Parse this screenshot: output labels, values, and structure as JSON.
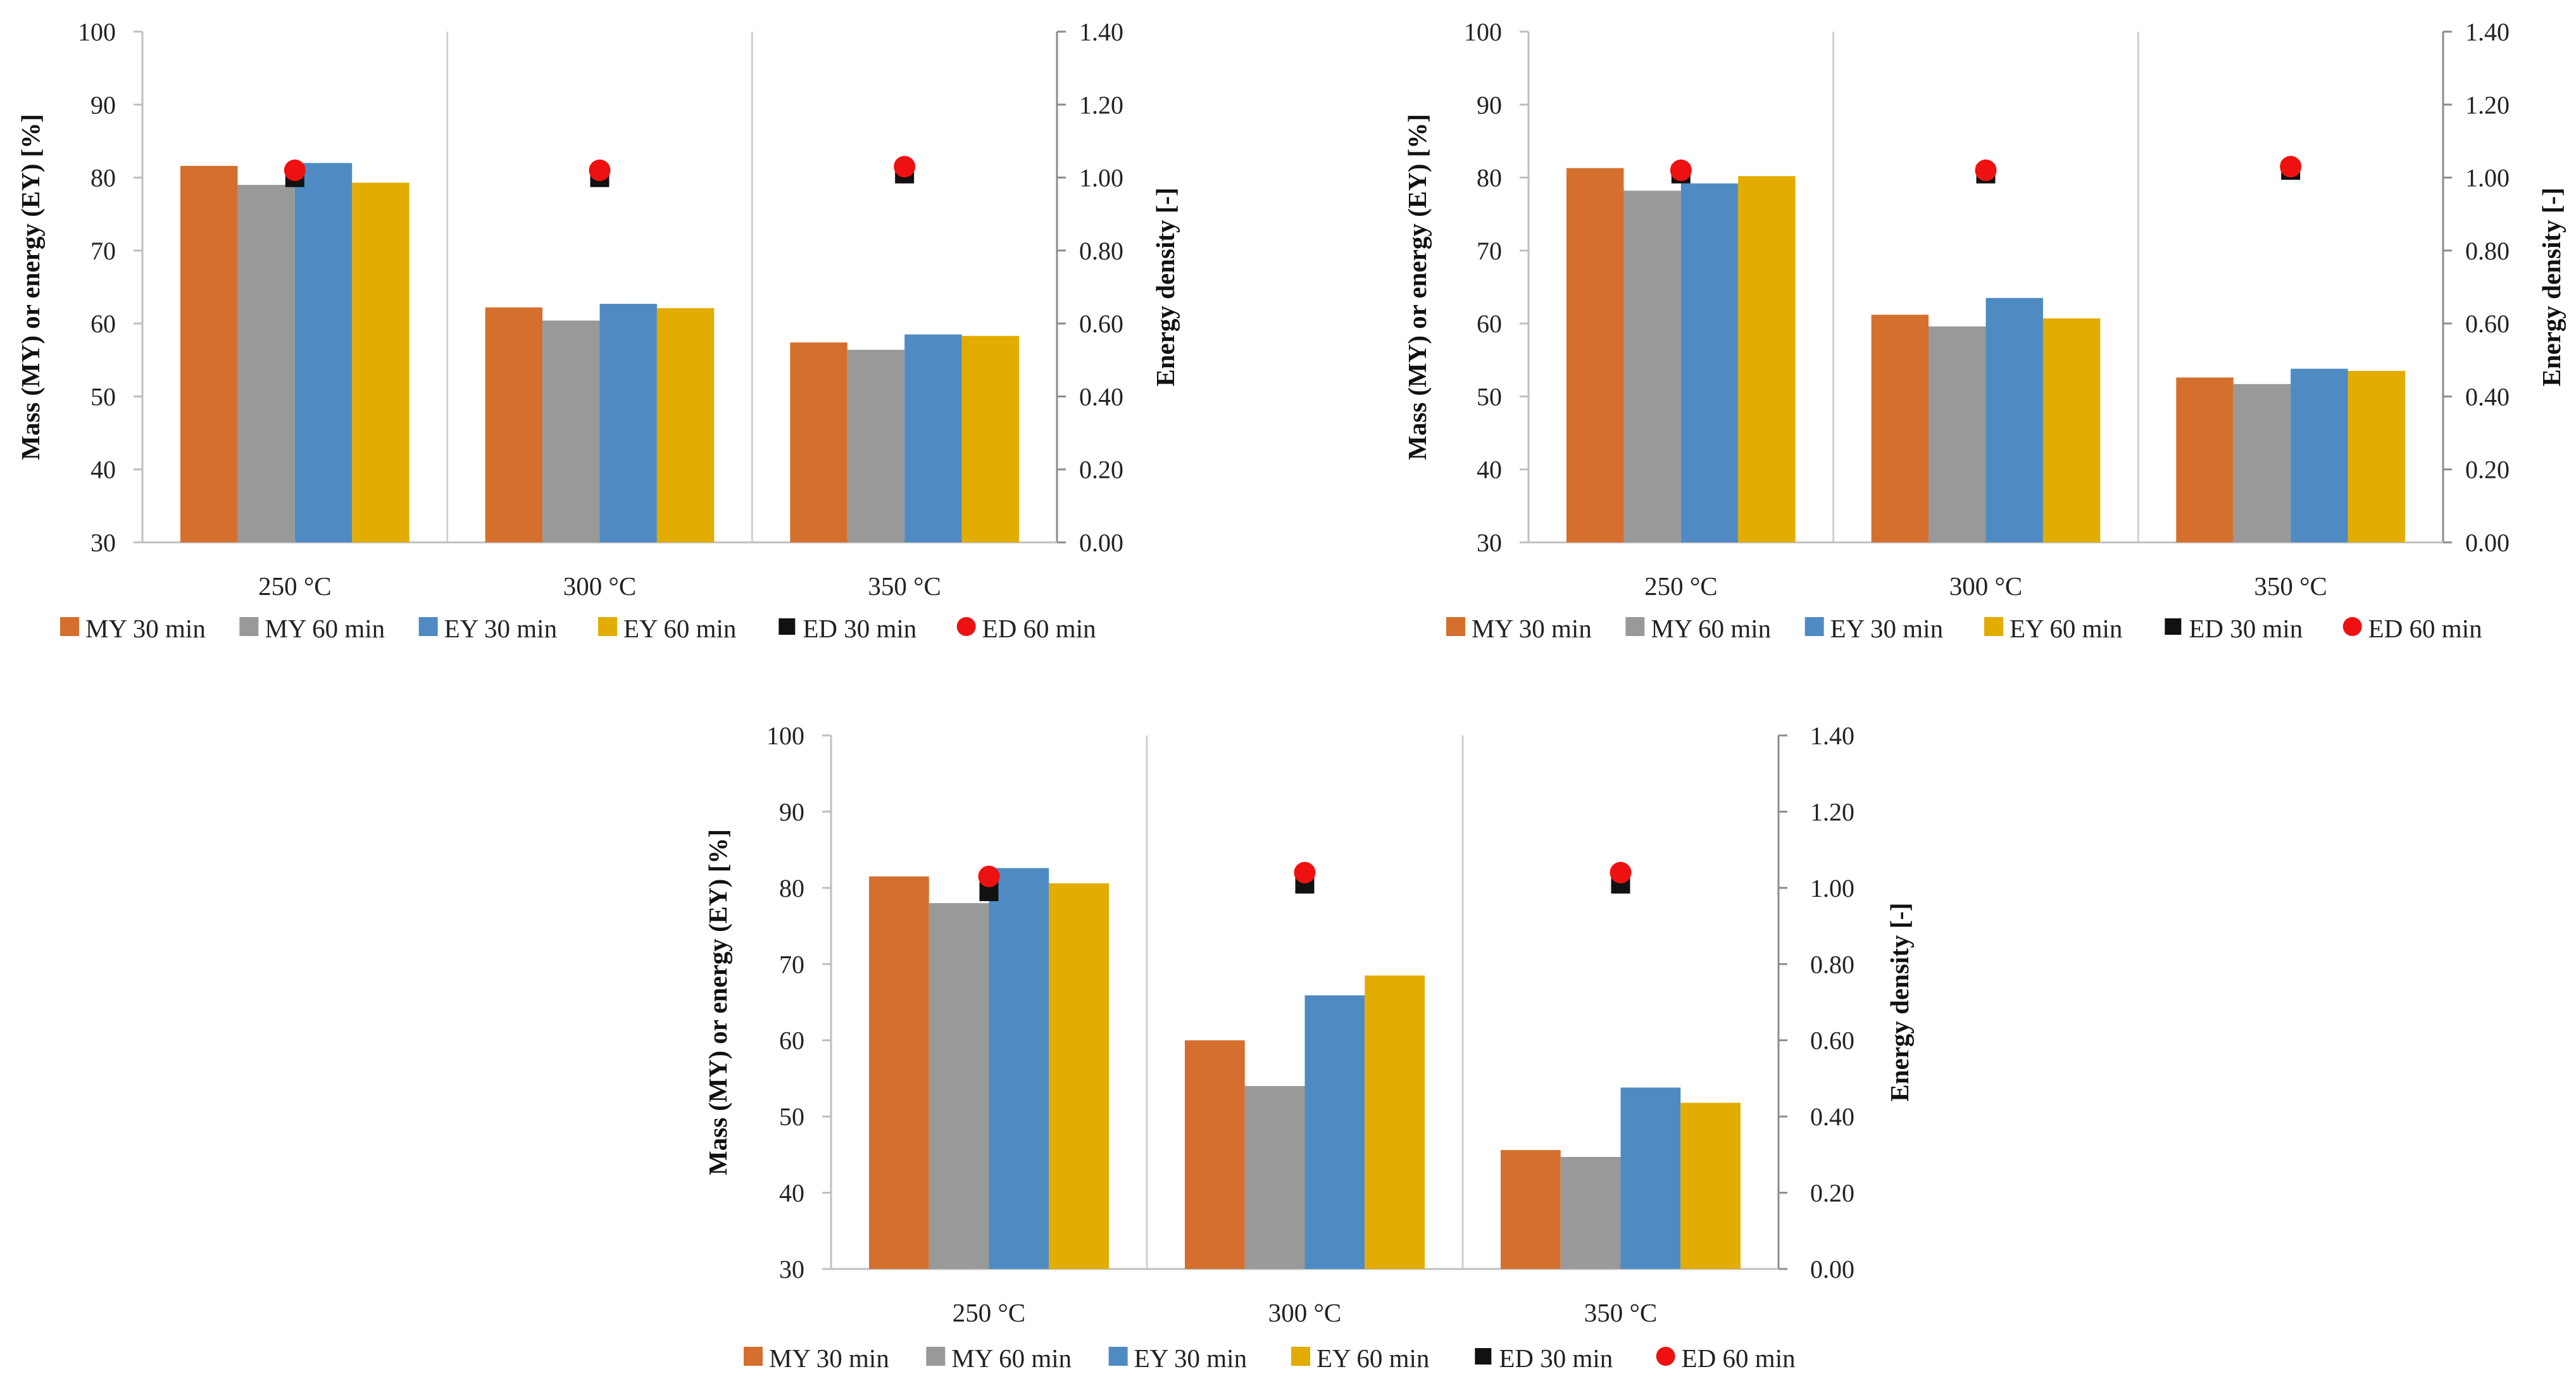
{
  "chart_data": [
    {
      "type": "bar",
      "categories": [
        "250 °C",
        "300 °C",
        "350 °C"
      ],
      "series": [
        {
          "name": "MY 30 min",
          "color": "#D46F2D",
          "values": [
            81.6,
            62.2,
            57.4
          ]
        },
        {
          "name": "MY 60 min",
          "color": "#999999",
          "values": [
            79.0,
            60.4,
            56.4
          ]
        },
        {
          "name": "EY 30 min",
          "color": "#4F8BC2",
          "values": [
            82.0,
            62.7,
            58.5
          ]
        },
        {
          "name": "EY 60 min",
          "color": "#E2AC00",
          "values": [
            79.3,
            62.1,
            58.3
          ]
        }
      ],
      "secondary_series": [
        {
          "name": "ED 30 min",
          "color": "#111111",
          "marker": "square",
          "values": [
            1.0,
            1.0,
            1.01
          ]
        },
        {
          "name": "ED 60 min",
          "color": "#EE1111",
          "marker": "circle",
          "values": [
            1.02,
            1.02,
            1.03
          ]
        }
      ],
      "ylabel": "Mass (MY) or energy (EY) [%]",
      "y2label": "Energy density [-]",
      "ylim": [
        30,
        100
      ],
      "yticks": [
        "30",
        "40",
        "50",
        "60",
        "70",
        "80",
        "90",
        "100"
      ],
      "y2lim": [
        0,
        1.4
      ],
      "y2ticks": [
        "0.00",
        "0.20",
        "0.40",
        "0.60",
        "0.80",
        "1.00",
        "1.20",
        "1.40"
      ]
    },
    {
      "type": "bar",
      "categories": [
        "250 °C",
        "300 °C",
        "350 °C"
      ],
      "series": [
        {
          "name": "MY 30 min",
          "color": "#D46F2D",
          "values": [
            81.3,
            61.2,
            52.6
          ]
        },
        {
          "name": "MY 60 min",
          "color": "#999999",
          "values": [
            78.2,
            59.6,
            51.7
          ]
        },
        {
          "name": "EY 30 min",
          "color": "#4F8BC2",
          "values": [
            79.2,
            63.5,
            53.8
          ]
        },
        {
          "name": "EY 60 min",
          "color": "#E2AC00",
          "values": [
            80.2,
            60.7,
            53.5
          ]
        }
      ],
      "secondary_series": [
        {
          "name": "ED 30 min",
          "color": "#111111",
          "marker": "square",
          "values": [
            1.01,
            1.01,
            1.02
          ]
        },
        {
          "name": "ED 60 min",
          "color": "#EE1111",
          "marker": "circle",
          "values": [
            1.02,
            1.02,
            1.03
          ]
        }
      ],
      "ylabel": "Mass (MY) or energy (EY) [%]",
      "y2label": "Energy density [-]",
      "ylim": [
        30,
        100
      ],
      "yticks": [
        "30",
        "40",
        "50",
        "60",
        "70",
        "80",
        "90",
        "100"
      ],
      "y2lim": [
        0,
        1.4
      ],
      "y2ticks": [
        "0.00",
        "0.20",
        "0.40",
        "0.60",
        "0.80",
        "1.00",
        "1.20",
        "1.40"
      ]
    },
    {
      "type": "bar",
      "categories": [
        "250 °C",
        "300 °C",
        "350 °C"
      ],
      "series": [
        {
          "name": "MY 30 min",
          "color": "#D46F2D",
          "values": [
            81.5,
            60.0,
            45.6
          ]
        },
        {
          "name": "MY 60 min",
          "color": "#999999",
          "values": [
            78.0,
            54.0,
            44.7
          ]
        },
        {
          "name": "EY 30 min",
          "color": "#4F8BC2",
          "values": [
            82.6,
            65.9,
            53.8
          ]
        },
        {
          "name": "EY 60 min",
          "color": "#E2AC00",
          "values": [
            80.6,
            68.5,
            51.8
          ]
        }
      ],
      "secondary_series": [
        {
          "name": "ED 30 min",
          "color": "#111111",
          "marker": "square",
          "values": [
            0.99,
            1.01,
            1.01
          ]
        },
        {
          "name": "ED 60 min",
          "color": "#EE1111",
          "marker": "circle",
          "values": [
            1.03,
            1.04,
            1.04
          ]
        }
      ],
      "ylabel": "Mass (MY) or energy (EY) [%]",
      "y2label": "Energy density [-]",
      "ylim": [
        30,
        100
      ],
      "yticks": [
        "30",
        "40",
        "50",
        "60",
        "70",
        "80",
        "90",
        "100"
      ],
      "y2lim": [
        0,
        1.4
      ],
      "y2ticks": [
        "0.00",
        "0.20",
        "0.40",
        "0.60",
        "0.80",
        "1.00",
        "1.20",
        "1.40"
      ]
    }
  ]
}
